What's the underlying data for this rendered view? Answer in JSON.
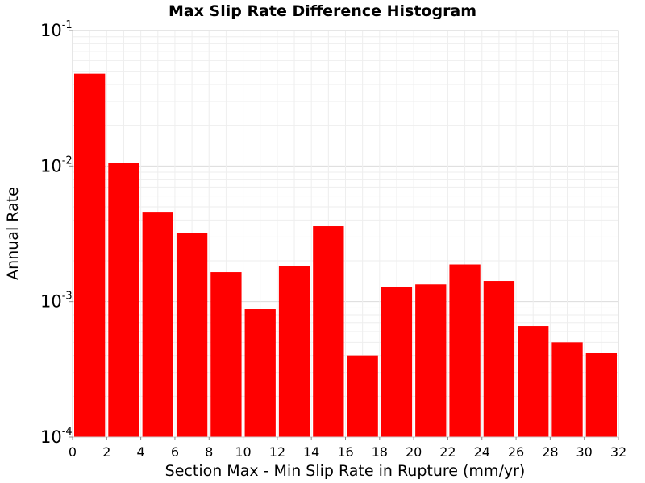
{
  "chart_data": {
    "type": "bar",
    "title": "Max Slip Rate Difference Histogram",
    "xlabel": "Section Max - Min Slip Rate in Rupture (mm/yr)",
    "ylabel": "Annual Rate",
    "yscale": "log",
    "xlim": [
      0,
      32
    ],
    "ylim": [
      0.0001,
      0.1
    ],
    "bin_width": 2,
    "x": [
      1,
      3,
      5,
      7,
      9,
      11,
      13,
      15,
      17,
      19,
      21,
      23,
      25,
      27,
      29,
      31
    ],
    "values": [
      0.048,
      0.0105,
      0.0046,
      0.0032,
      0.00165,
      0.00088,
      0.00182,
      0.0036,
      0.0004,
      0.00128,
      0.00134,
      0.00188,
      0.00142,
      0.00066,
      0.0005,
      0.00042
    ],
    "bar_color": "#ff0000",
    "x_ticks": [
      0,
      2,
      4,
      6,
      8,
      10,
      12,
      14,
      16,
      18,
      20,
      22,
      24,
      26,
      28,
      30,
      32
    ],
    "y_ticks": [
      {
        "base": "10",
        "exp": "-4",
        "value": 0.0001
      },
      {
        "base": "10",
        "exp": "-3",
        "value": 0.001
      },
      {
        "base": "10",
        "exp": "-2",
        "value": 0.01
      },
      {
        "base": "10",
        "exp": "-1",
        "value": 0.1
      }
    ],
    "grid": true,
    "legend": "none"
  }
}
